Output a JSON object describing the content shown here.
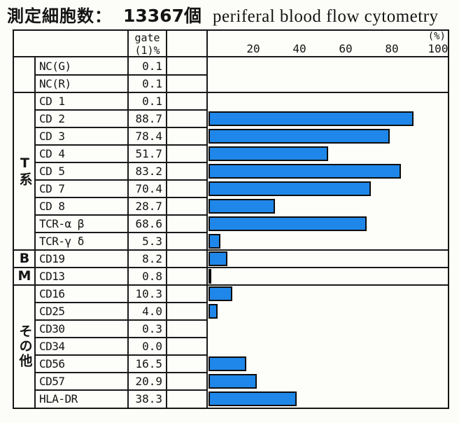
{
  "title": {
    "jp_label": "測定細胞数：",
    "count": "13367個",
    "en": "periferal blood flow cytometry"
  },
  "header": {
    "gate_line1": "gate",
    "gate_line2": "(1)%",
    "percent_label": "(%)",
    "ticks": [
      20,
      40,
      60,
      80,
      100
    ]
  },
  "colors": {
    "bar_fill": "#1f87e9",
    "line": "#1a1a1a",
    "paper": "#fcfcf8"
  },
  "table": {
    "groups": [
      {
        "label": "",
        "rows": [
          {
            "name": "NC(G)",
            "gate": "0.1",
            "value": 0.1
          },
          {
            "name": "NC(R)",
            "gate": "0.1",
            "value": 0.1
          }
        ]
      },
      {
        "label": "T系",
        "rows": [
          {
            "name": "CD 1",
            "gate": "0.1",
            "value": 0.1
          },
          {
            "name": "CD 2",
            "gate": "88.7",
            "value": 88.7
          },
          {
            "name": "CD 3",
            "gate": "78.4",
            "value": 78.4
          },
          {
            "name": "CD 4",
            "gate": "51.7",
            "value": 51.7
          },
          {
            "name": "CD 5",
            "gate": "83.2",
            "value": 83.2
          },
          {
            "name": "CD 7",
            "gate": "70.4",
            "value": 70.4
          },
          {
            "name": "CD 8",
            "gate": "28.7",
            "value": 28.7
          },
          {
            "name": "TCR-α β",
            "gate": "68.6",
            "value": 68.6
          },
          {
            "name": "TCR-γ δ",
            "gate": "5.3",
            "value": 5.3
          }
        ]
      },
      {
        "label": "B",
        "rows": [
          {
            "name": "CD19",
            "gate": "8.2",
            "value": 8.2
          }
        ]
      },
      {
        "label": "M",
        "rows": [
          {
            "name": "CD13",
            "gate": "0.8",
            "value": 0.8
          }
        ]
      },
      {
        "label": "その他",
        "rows": [
          {
            "name": "CD16",
            "gate": "10.3",
            "value": 10.3
          },
          {
            "name": "CD25",
            "gate": "4.0",
            "value": 4.0
          },
          {
            "name": "CD30",
            "gate": "0.3",
            "value": 0.3
          },
          {
            "name": "CD34",
            "gate": "0.0",
            "value": 0.0
          },
          {
            "name": "CD56",
            "gate": "16.5",
            "value": 16.5
          },
          {
            "name": "CD57",
            "gate": "20.9",
            "value": 20.9
          },
          {
            "name": "HLA-DR",
            "gate": "38.3",
            "value": 38.3
          }
        ]
      }
    ]
  },
  "chart_data": {
    "type": "bar",
    "orientation": "horizontal",
    "title": "periferal blood flow cytometry",
    "subtitle": "測定細胞数： 13367個",
    "xlabel": "(%)",
    "xlim": [
      0,
      103
    ],
    "x_ticks": [
      20,
      40,
      60,
      80,
      100
    ],
    "grid": false,
    "legend": "none",
    "categories": [
      "NC(G)",
      "NC(R)",
      "CD 1",
      "CD 2",
      "CD 3",
      "CD 4",
      "CD 5",
      "CD 7",
      "CD 8",
      "TCR-α β",
      "TCR-γ δ",
      "CD19",
      "CD13",
      "CD16",
      "CD25",
      "CD30",
      "CD34",
      "CD56",
      "CD57",
      "HLA-DR"
    ],
    "values": [
      0.1,
      0.1,
      0.1,
      88.7,
      78.4,
      51.7,
      83.2,
      70.4,
      28.7,
      68.6,
      5.3,
      8.2,
      0.8,
      10.3,
      4.0,
      0.3,
      0.0,
      16.5,
      20.9,
      38.3
    ],
    "group_labels": [
      "",
      "T系",
      "B",
      "M",
      "その他"
    ],
    "group_sizes": [
      2,
      9,
      1,
      1,
      7
    ],
    "bar_color": "#1f87e9"
  }
}
